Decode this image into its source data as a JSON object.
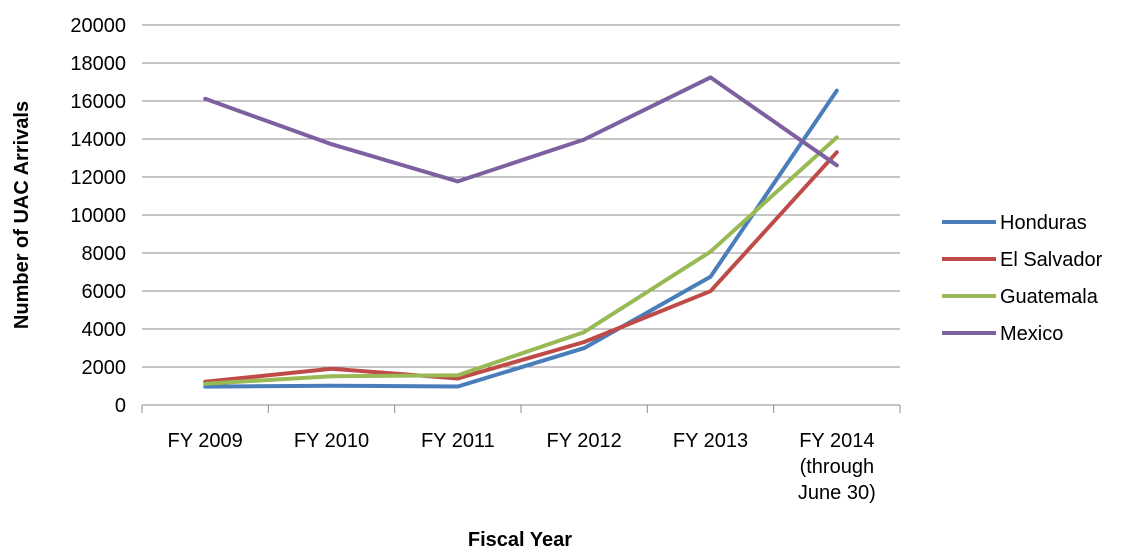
{
  "chart_data": {
    "type": "line",
    "xlabel": "Fiscal Year",
    "ylabel": "Number of UAC Arrivals",
    "categories": [
      [
        "FY 2009"
      ],
      [
        "FY 2010"
      ],
      [
        "FY 2011"
      ],
      [
        "FY 2012"
      ],
      [
        "FY 2013"
      ],
      [
        "FY 2014",
        "(through",
        "June 30)"
      ]
    ],
    "ylim": [
      0,
      20000
    ],
    "yticks": [
      0,
      2000,
      4000,
      6000,
      8000,
      10000,
      12000,
      14000,
      16000,
      18000,
      20000
    ],
    "grid": true,
    "legend_position": "right",
    "series": [
      {
        "name": "Honduras",
        "color": "#4a7ebb",
        "values": [
          968,
          1017,
          974,
          2997,
          6747,
          16546
        ]
      },
      {
        "name": "El Salvador",
        "color": "#be4b48",
        "values": [
          1221,
          1910,
          1394,
          3314,
          5990,
          13301
        ]
      },
      {
        "name": "Guatemala",
        "color": "#98b954",
        "values": [
          1115,
          1517,
          1565,
          3835,
          8068,
          14086
        ]
      },
      {
        "name": "Mexico",
        "color": "#7d60a0",
        "values": [
          16114,
          13724,
          11768,
          13974,
          17240,
          12614
        ]
      }
    ]
  }
}
